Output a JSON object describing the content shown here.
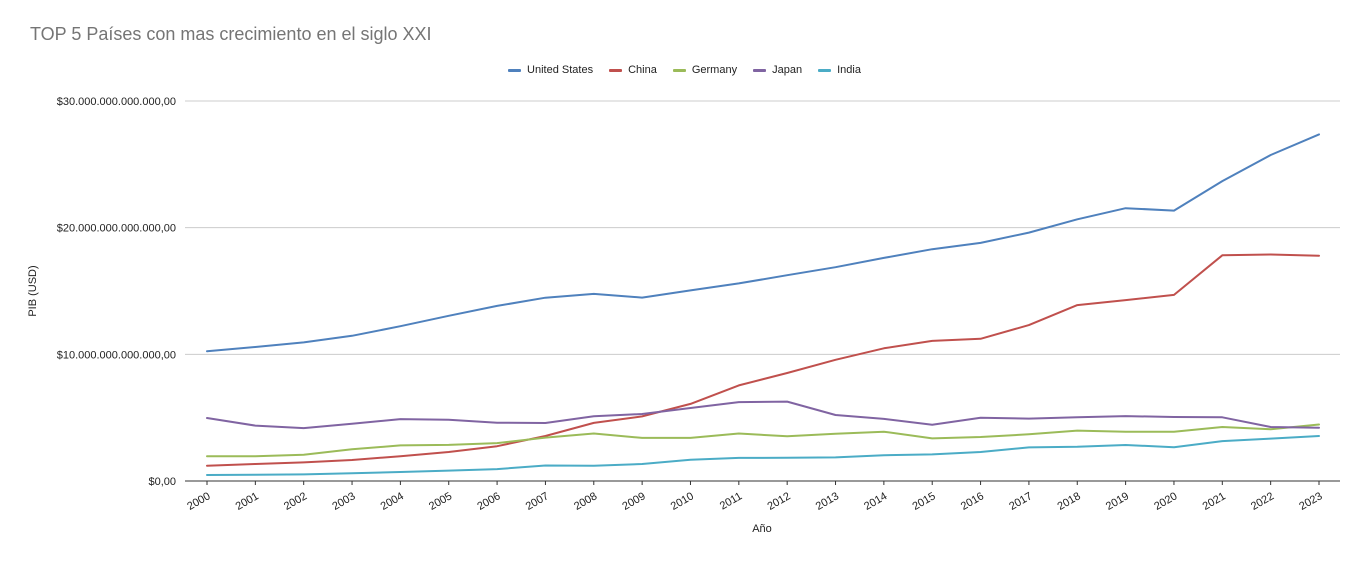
{
  "chart_data": {
    "type": "line",
    "title": "TOP 5 Países con mas crecimiento en el siglo XXI",
    "xlabel": "Año",
    "ylabel": "PIB (USD)",
    "ylim": [
      0,
      30000000000000
    ],
    "yticks": [
      0,
      10000000000000,
      20000000000000,
      30000000000000
    ],
    "ytick_labels": [
      "$0,00",
      "$10.000.000.000.000,00",
      "$20.000.000.000.000,00",
      "$30.000.000.000.000,00"
    ],
    "categories": [
      "2000",
      "2001",
      "2002",
      "2003",
      "2004",
      "2005",
      "2006",
      "2007",
      "2008",
      "2009",
      "2010",
      "2011",
      "2012",
      "2013",
      "2014",
      "2015",
      "2016",
      "2017",
      "2018",
      "2019",
      "2020",
      "2021",
      "2022",
      "2023"
    ],
    "series": [
      {
        "name": "United States",
        "color": "#4F81BD",
        "values": [
          10.25,
          10.58,
          10.94,
          11.46,
          12.22,
          13.04,
          13.82,
          14.47,
          14.77,
          14.48,
          15.05,
          15.6,
          16.25,
          16.88,
          17.61,
          18.3,
          18.8,
          19.61,
          20.66,
          21.54,
          21.35,
          23.68,
          25.74,
          27.36
        ]
      },
      {
        "name": "China",
        "color": "#C0504D",
        "values": [
          1.21,
          1.34,
          1.47,
          1.66,
          1.96,
          2.29,
          2.75,
          3.55,
          4.59,
          5.1,
          6.09,
          7.55,
          8.53,
          9.57,
          10.48,
          11.06,
          11.23,
          12.31,
          13.89,
          14.28,
          14.69,
          17.82,
          17.88,
          17.79
        ]
      },
      {
        "name": "Germany",
        "color": "#9BBB59",
        "values": [
          1.95,
          1.95,
          2.08,
          2.5,
          2.81,
          2.85,
          2.99,
          3.43,
          3.75,
          3.4,
          3.4,
          3.75,
          3.53,
          3.73,
          3.89,
          3.36,
          3.47,
          3.69,
          3.98,
          3.89,
          3.89,
          4.26,
          4.08,
          4.46
        ]
      },
      {
        "name": "Japan",
        "color": "#8064A2",
        "values": [
          4.97,
          4.37,
          4.18,
          4.52,
          4.89,
          4.83,
          4.6,
          4.58,
          5.11,
          5.29,
          5.76,
          6.23,
          6.27,
          5.21,
          4.9,
          4.44,
          5.0,
          4.93,
          5.04,
          5.12,
          5.05,
          5.03,
          4.26,
          4.21
        ]
      },
      {
        "name": "India",
        "color": "#4BACC6",
        "values": [
          0.47,
          0.49,
          0.52,
          0.61,
          0.71,
          0.82,
          0.94,
          1.22,
          1.2,
          1.34,
          1.68,
          1.82,
          1.83,
          1.86,
          2.04,
          2.1,
          2.29,
          2.65,
          2.7,
          2.84,
          2.67,
          3.15,
          3.35,
          3.55
        ]
      }
    ],
    "values_unit": "trillions USD",
    "legend_position": "top-center",
    "grid": true
  }
}
